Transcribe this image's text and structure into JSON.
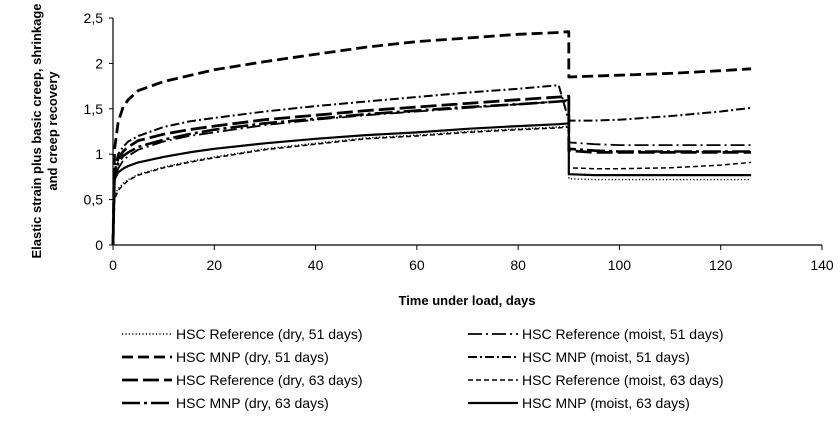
{
  "chart_data": {
    "type": "line",
    "xlabel": "Time under load, days",
    "ylabel_lines": [
      "Elastic strain plus basic creep, shrinkage",
      "and creep recovery"
    ],
    "xlim": [
      0,
      140
    ],
    "ylim": [
      0,
      2.5
    ],
    "xticks": [
      0,
      20,
      40,
      60,
      80,
      100,
      120,
      140
    ],
    "yticks": [
      "0",
      "0,5",
      "1",
      "1,5",
      "2",
      "2,5"
    ],
    "grid": false,
    "legend_position": "bottom",
    "series": [
      {
        "name": "HSC Reference (dry, 51 days)",
        "dash": "dotted",
        "x": [
          0,
          0.3,
          1,
          2,
          3,
          5,
          10,
          15,
          20,
          30,
          40,
          50,
          60,
          70,
          80,
          88,
          90,
          90.01,
          95,
          100,
          110,
          120,
          126
        ],
        "y": [
          0,
          0.55,
          0.62,
          0.68,
          0.72,
          0.78,
          0.86,
          0.92,
          0.97,
          1.06,
          1.12,
          1.18,
          1.21,
          1.25,
          1.28,
          1.3,
          1.31,
          0.73,
          0.72,
          0.72,
          0.72,
          0.72,
          0.72
        ]
      },
      {
        "name": "HSC Reference (moist, 51 days)",
        "dash": "long-dot",
        "x": [
          0,
          0.3,
          1,
          2,
          3,
          5,
          10,
          15,
          20,
          30,
          40,
          50,
          60,
          70,
          80,
          88,
          90,
          90.01,
          95,
          100,
          110,
          120,
          126
        ],
        "y": [
          0,
          0.72,
          0.84,
          0.93,
          0.98,
          1.05,
          1.14,
          1.2,
          1.24,
          1.32,
          1.38,
          1.43,
          1.47,
          1.51,
          1.55,
          1.58,
          1.6,
          1.13,
          1.11,
          1.1,
          1.1,
          1.1,
          1.1
        ]
      },
      {
        "name": "HSC MNP (dry, 51 days)",
        "dash": "dashed",
        "x": [
          0,
          0.3,
          1,
          2,
          3,
          5,
          10,
          20,
          30,
          40,
          50,
          60,
          70,
          80,
          88,
          90,
          90.01,
          100,
          110,
          120,
          126
        ],
        "y": [
          0,
          1.05,
          1.35,
          1.52,
          1.6,
          1.7,
          1.8,
          1.93,
          2.02,
          2.1,
          2.18,
          2.24,
          2.28,
          2.32,
          2.34,
          2.35,
          1.85,
          1.87,
          1.89,
          1.92,
          1.94
        ]
      },
      {
        "name": "HSC MNP (moist, 51 days)",
        "dash": "dash-dot",
        "x": [
          0,
          0.3,
          1,
          2,
          3,
          5,
          10,
          15,
          20,
          30,
          40,
          50,
          60,
          70,
          80,
          88,
          90,
          95,
          100,
          110,
          120,
          126
        ],
        "y": [
          0,
          0.85,
          1.0,
          1.08,
          1.14,
          1.2,
          1.3,
          1.36,
          1.4,
          1.47,
          1.53,
          1.58,
          1.63,
          1.68,
          1.72,
          1.76,
          1.37,
          1.37,
          1.38,
          1.42,
          1.47,
          1.51
        ]
      },
      {
        "name": "HSC Reference (dry, 63 days)",
        "dash": "long-dash",
        "x": [
          0,
          0.3,
          1,
          2,
          3,
          5,
          10,
          15,
          20,
          30,
          40,
          50,
          60,
          70,
          80,
          88,
          90,
          90.01,
          95,
          100,
          110,
          120,
          126
        ],
        "y": [
          0,
          0.8,
          0.95,
          1.03,
          1.08,
          1.15,
          1.22,
          1.27,
          1.31,
          1.38,
          1.43,
          1.48,
          1.52,
          1.56,
          1.6,
          1.63,
          1.64,
          1.04,
          1.02,
          1.02,
          1.02,
          1.02,
          1.02
        ]
      },
      {
        "name": "HSC Reference (moist, 63 days)",
        "dash": "short-dash",
        "x": [
          0,
          0.3,
          1,
          2,
          3,
          5,
          10,
          15,
          20,
          30,
          40,
          50,
          60,
          70,
          80,
          88,
          90,
          90.01,
          95,
          100,
          110,
          120,
          126
        ],
        "y": [
          0,
          0.5,
          0.6,
          0.66,
          0.71,
          0.77,
          0.85,
          0.91,
          0.96,
          1.05,
          1.11,
          1.17,
          1.2,
          1.24,
          1.27,
          1.29,
          1.3,
          0.85,
          0.84,
          0.84,
          0.85,
          0.88,
          0.91
        ]
      },
      {
        "name": "HSC MNP (dry, 63 days)",
        "dash": "long-dash-dot",
        "x": [
          0,
          0.3,
          1,
          2,
          3,
          5,
          10,
          15,
          20,
          30,
          40,
          50,
          60,
          70,
          80,
          88,
          90,
          90.01,
          95,
          100,
          110,
          120,
          126
        ],
        "y": [
          0,
          0.75,
          0.9,
          0.98,
          1.02,
          1.08,
          1.16,
          1.22,
          1.27,
          1.34,
          1.39,
          1.44,
          1.48,
          1.52,
          1.55,
          1.58,
          1.59,
          1.06,
          1.04,
          1.03,
          1.03,
          1.03,
          1.03
        ]
      },
      {
        "name": "HSC MNP (moist, 63 days)",
        "dash": "solid",
        "x": [
          0,
          0.3,
          1,
          2,
          3,
          5,
          10,
          15,
          20,
          30,
          40,
          50,
          60,
          70,
          80,
          88,
          90,
          90.01,
          95,
          100,
          110,
          120,
          126
        ],
        "y": [
          0,
          0.72,
          0.8,
          0.84,
          0.87,
          0.91,
          0.97,
          1.02,
          1.06,
          1.12,
          1.17,
          1.21,
          1.24,
          1.28,
          1.31,
          1.33,
          1.34,
          0.78,
          0.77,
          0.77,
          0.77,
          0.77,
          0.77
        ]
      }
    ]
  },
  "colors": {
    "line": "#000000",
    "axis": "#000000",
    "background": "#ffffff"
  }
}
